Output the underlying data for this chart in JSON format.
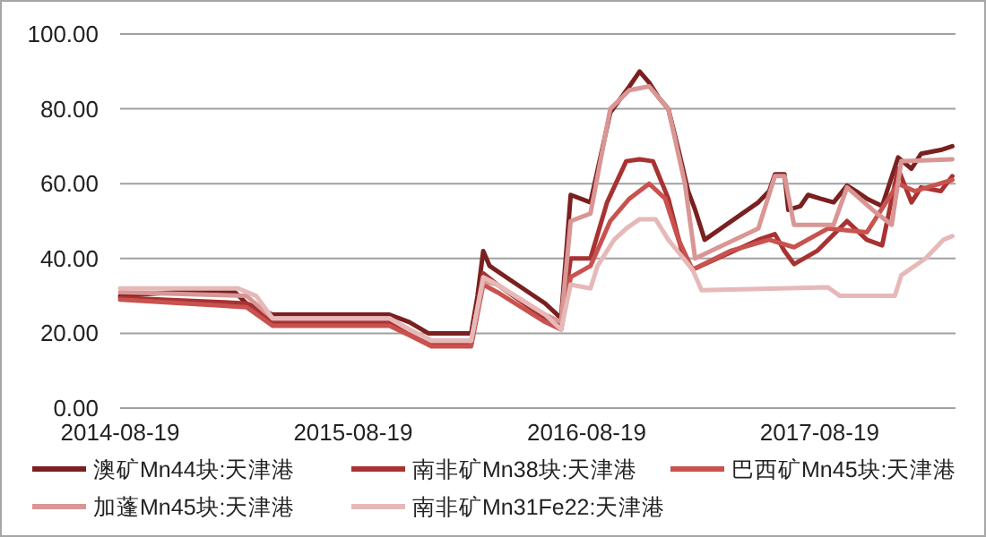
{
  "chart_data": {
    "type": "line",
    "xlim": [
      "2014-08-19",
      "2018-03-20"
    ],
    "xticks": [
      "2014-08-19",
      "2015-08-19",
      "2016-08-19",
      "2017-08-19"
    ],
    "ylim": [
      0,
      100
    ],
    "yticks": [
      {
        "value": 0,
        "label": "0.00"
      },
      {
        "value": 20,
        "label": "20.00"
      },
      {
        "value": 40,
        "label": "40.00"
      },
      {
        "value": 60,
        "label": "60.00"
      },
      {
        "value": 80,
        "label": "80.00"
      },
      {
        "value": 100,
        "label": "100.00"
      }
    ],
    "grid": "y",
    "legend": "bottom",
    "marker": "none",
    "line_style": "solid",
    "series": [
      {
        "name": "澳矿Mn44块:天津港",
        "color": "#7b2020",
        "x": [
          "2014-08-19",
          "2015-01-01",
          "2015-02-15",
          "2015-03-05",
          "2015-04-15",
          "2015-10-15",
          "2015-11-15",
          "2015-12-15",
          "2016-02-20",
          "2016-03-01",
          "2016-03-10",
          "2016-03-20",
          "2016-04-15",
          "2016-06-15",
          "2016-07-10",
          "2016-07-25",
          "2016-08-25",
          "2016-09-25",
          "2016-10-25",
          "2016-11-10",
          "2016-11-25",
          "2016-12-10",
          "2016-12-25",
          "2017-01-10",
          "2017-01-25",
          "2017-02-05",
          "2017-02-20",
          "2017-05-15",
          "2017-06-01",
          "2017-06-10",
          "2017-06-25",
          "2017-07-01",
          "2017-07-20",
          "2017-08-01",
          "2017-08-20",
          "2017-09-10",
          "2017-10-01",
          "2017-10-15",
          "2017-11-01",
          "2017-11-25",
          "2017-12-20",
          "2018-01-10",
          "2018-01-25",
          "2018-02-25",
          "2018-03-15"
        ],
        "values": [
          30,
          31.5,
          31,
          28,
          25,
          25,
          23,
          20,
          20,
          30,
          42,
          38,
          35,
          28,
          24,
          57,
          55,
          79,
          86,
          90,
          87,
          83,
          80,
          69,
          58,
          53,
          45,
          55,
          58,
          62.5,
          62.5,
          53,
          54,
          57,
          56,
          55,
          59.5,
          58,
          56,
          54,
          67,
          64,
          68,
          69,
          70
        ]
      },
      {
        "name": "南非矿Mn38块:天津港",
        "color": "#a83232",
        "x": [
          "2014-08-19",
          "2015-03-05",
          "2015-04-15",
          "2015-10-15",
          "2015-11-15",
          "2015-12-20",
          "2016-02-20",
          "2016-03-10",
          "2016-04-01",
          "2016-06-15",
          "2016-07-10",
          "2016-07-25",
          "2016-08-25",
          "2016-09-20",
          "2016-10-20",
          "2016-11-10",
          "2016-12-01",
          "2016-12-25",
          "2017-01-15",
          "2017-02-01",
          "2017-05-15",
          "2017-06-10",
          "2017-06-25",
          "2017-07-10",
          "2017-08-15",
          "2017-10-01",
          "2017-11-01",
          "2017-11-25",
          "2017-12-20",
          "2018-01-10",
          "2018-01-25",
          "2018-02-25",
          "2018-03-15"
        ],
        "values": [
          29.5,
          28,
          23,
          23,
          20,
          17,
          17,
          36,
          33,
          24,
          22,
          40,
          40,
          55,
          66,
          66.5,
          66,
          56,
          42,
          37,
          45,
          46.5,
          42,
          38.5,
          42,
          50,
          45,
          43.5,
          64,
          55,
          59,
          58,
          62
        ]
      },
      {
        "name": "巴西矿Mn45块:天津港",
        "color": "#c9524f",
        "x": [
          "2014-08-19",
          "2015-03-05",
          "2015-04-15",
          "2015-10-15",
          "2015-11-15",
          "2015-12-20",
          "2016-02-20",
          "2016-03-10",
          "2016-04-01",
          "2016-06-15",
          "2016-07-10",
          "2016-07-25",
          "2016-08-25",
          "2016-09-25",
          "2016-10-25",
          "2016-11-25",
          "2016-12-20",
          "2017-01-10",
          "2017-02-01",
          "2017-04-01",
          "2017-06-01",
          "2017-07-10",
          "2017-09-01",
          "2017-11-01",
          "2017-12-20",
          "2018-01-15",
          "2018-03-15"
        ],
        "values": [
          29,
          27,
          22,
          22,
          19.5,
          16.5,
          16.5,
          33,
          31,
          23,
          21,
          35,
          38,
          50,
          56,
          60,
          56,
          45,
          37,
          42,
          45,
          43,
          48,
          47,
          60,
          58,
          61
        ]
      },
      {
        "name": "加蓬Mn45块:天津港",
        "color": "#d99694",
        "x": [
          "2014-08-19",
          "2015-03-05",
          "2015-04-15",
          "2015-10-15",
          "2015-11-15",
          "2015-12-20",
          "2016-02-20",
          "2016-03-10",
          "2016-04-01",
          "2016-06-15",
          "2016-07-10",
          "2016-07-25",
          "2016-08-25",
          "2016-09-25",
          "2016-10-25",
          "2016-11-25",
          "2016-12-25",
          "2017-01-20",
          "2017-02-05",
          "2017-05-15",
          "2017-06-10",
          "2017-06-25",
          "2017-07-10",
          "2017-09-10",
          "2017-10-01",
          "2017-11-10",
          "2017-12-10",
          "2017-12-25",
          "2018-03-15"
        ],
        "values": [
          31,
          30,
          24,
          24,
          21,
          18,
          18,
          34,
          33,
          25,
          23,
          50,
          52,
          80,
          85,
          86,
          80,
          60,
          40,
          48,
          62,
          62,
          49,
          49,
          59,
          53,
          49,
          66,
          66.5
        ]
      },
      {
        "name": "南非矿Mn31Fe22:天津港",
        "color": "#e6b9b8",
        "x": [
          "2014-08-19",
          "2015-02-20",
          "2015-03-20",
          "2015-04-15",
          "2015-10-15",
          "2015-11-15",
          "2015-12-20",
          "2016-02-20",
          "2016-03-10",
          "2016-04-01",
          "2016-06-15",
          "2016-07-10",
          "2016-07-25",
          "2016-08-25",
          "2016-09-05",
          "2016-10-01",
          "2016-10-20",
          "2016-11-10",
          "2016-12-05",
          "2016-12-25",
          "2017-02-01",
          "2017-02-15",
          "2017-09-01",
          "2017-09-20",
          "2017-12-15",
          "2017-12-25",
          "2018-02-01",
          "2018-03-01",
          "2018-03-15"
        ],
        "values": [
          32,
          32,
          30,
          24,
          24,
          21,
          18,
          18,
          35,
          33,
          25,
          21,
          33,
          32,
          38,
          45,
          48,
          50.5,
          50.5,
          45,
          37,
          31.5,
          32.3,
          30,
          30,
          35.5,
          40,
          45,
          46
        ]
      }
    ]
  }
}
